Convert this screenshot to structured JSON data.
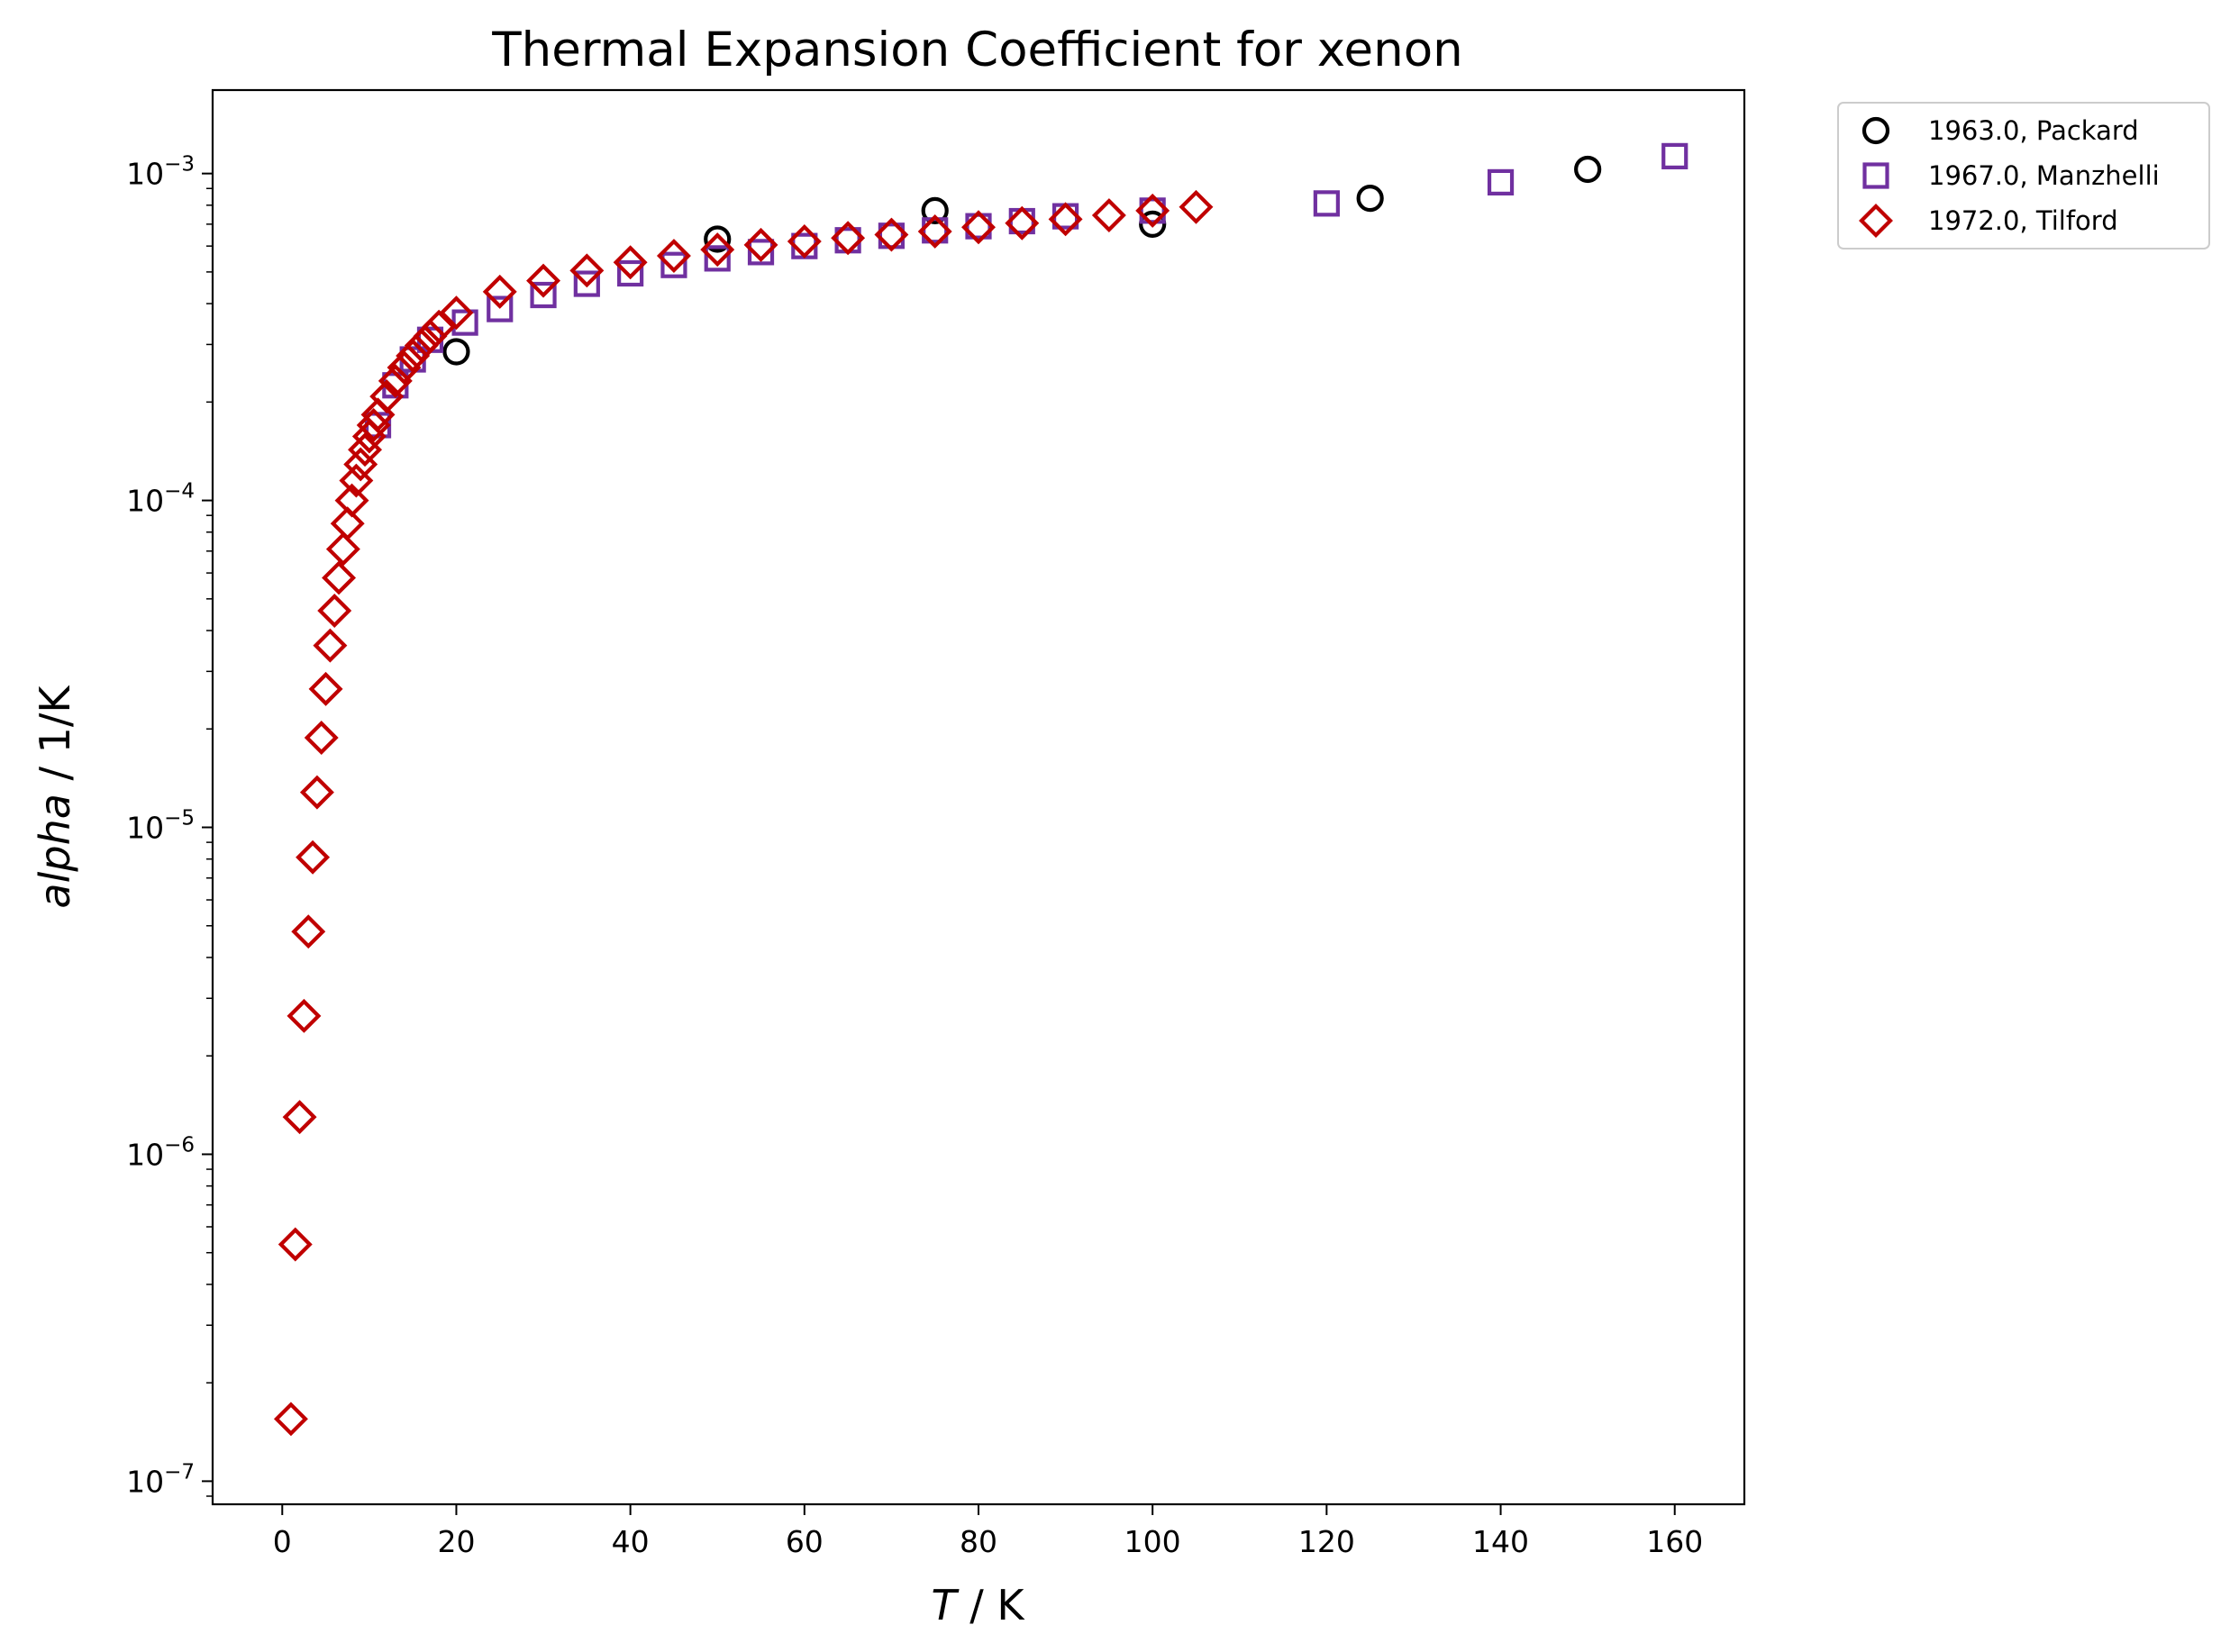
{
  "chart_data": {
    "type": "scatter",
    "title": "Thermal Expansion Coefficient for xenon",
    "xlabel": {
      "var": "T",
      "unit": " / K"
    },
    "ylabel": {
      "var": "alpha",
      "unit": " / 1/K"
    },
    "xlim": [
      -8,
      168
    ],
    "ylim": [
      8.5e-08,
      0.0018
    ],
    "yscale": "log",
    "xticks": [
      0,
      20,
      40,
      60,
      80,
      100,
      120,
      140,
      160
    ],
    "yticks": [
      {
        "base": "10",
        "exp": "−7",
        "value": 1e-07
      },
      {
        "base": "10",
        "exp": "−6",
        "value": 1e-06
      },
      {
        "base": "10",
        "exp": "−5",
        "value": 1e-05
      },
      {
        "base": "10",
        "exp": "−4",
        "value": 0.0001
      },
      {
        "base": "10",
        "exp": "−3",
        "value": 0.001
      }
    ],
    "legend_position": "outside-top-right",
    "series": [
      {
        "name": "1963.0, Packard",
        "marker": "circle",
        "color": "#000000",
        "points": [
          [
            20,
            0.000285
          ],
          [
            50,
            0.00063
          ],
          [
            75,
            0.00077
          ],
          [
            100,
            0.0007
          ],
          [
            125,
            0.00084
          ],
          [
            150,
            0.00103
          ]
        ]
      },
      {
        "name": "1967.0, Manzhelli",
        "marker": "square",
        "color": "#7030a0",
        "points": [
          [
            11,
            0.00017
          ],
          [
            13,
            0.000225
          ],
          [
            15,
            0.00027
          ],
          [
            17,
            0.00031
          ],
          [
            21,
            0.00035
          ],
          [
            25,
            0.000385
          ],
          [
            30,
            0.000425
          ],
          [
            35,
            0.00046
          ],
          [
            40,
            0.000495
          ],
          [
            45,
            0.000525
          ],
          [
            50,
            0.00055
          ],
          [
            55,
            0.000575
          ],
          [
            60,
            0.0006
          ],
          [
            65,
            0.000625
          ],
          [
            70,
            0.000645
          ],
          [
            75,
            0.00067
          ],
          [
            80,
            0.00069
          ],
          [
            85,
            0.000715
          ],
          [
            90,
            0.00074
          ],
          [
            100,
            0.00077
          ],
          [
            120,
            0.00081
          ],
          [
            140,
            0.00094
          ],
          [
            160,
            0.00113
          ]
        ]
      },
      {
        "name": "1972.0, Tilford",
        "marker": "diamond",
        "color": "#c00000",
        "points": [
          [
            1,
            1.55e-07
          ],
          [
            1.5,
            5.3e-07
          ],
          [
            2,
            1.3e-06
          ],
          [
            2.5,
            2.65e-06
          ],
          [
            3,
            4.8e-06
          ],
          [
            3.5,
            8.1e-06
          ],
          [
            4,
            1.28e-05
          ],
          [
            4.5,
            1.88e-05
          ],
          [
            5,
            2.65e-05
          ],
          [
            5.5,
            3.6e-05
          ],
          [
            6,
            4.6e-05
          ],
          [
            6.5,
            5.8e-05
          ],
          [
            7,
            7.1e-05
          ],
          [
            7.5,
            8.5e-05
          ],
          [
            8,
            0.0001
          ],
          [
            8.5,
            0.000115
          ],
          [
            9,
            0.000129
          ],
          [
            9.5,
            0.000143
          ],
          [
            10,
            0.000157
          ],
          [
            10.5,
            0.00017
          ],
          [
            11,
            0.000183
          ],
          [
            12,
            0.000208
          ],
          [
            13,
            0.000232
          ],
          [
            14,
            0.000255
          ],
          [
            15,
            0.000277
          ],
          [
            16,
            0.000298
          ],
          [
            17,
            0.000318
          ],
          [
            18,
            0.00034
          ],
          [
            20,
            0.000375
          ],
          [
            25,
            0.000435
          ],
          [
            30,
            0.00047
          ],
          [
            35,
            0.000505
          ],
          [
            40,
            0.000535
          ],
          [
            45,
            0.00056
          ],
          [
            50,
            0.000585
          ],
          [
            55,
            0.000605
          ],
          [
            60,
            0.00062
          ],
          [
            65,
            0.000635
          ],
          [
            70,
            0.00065
          ],
          [
            75,
            0.000665
          ],
          [
            80,
            0.000685
          ],
          [
            85,
            0.000705
          ],
          [
            90,
            0.000725
          ],
          [
            95,
            0.000745
          ],
          [
            100,
            0.00077
          ],
          [
            105,
            0.00079
          ]
        ]
      }
    ]
  }
}
